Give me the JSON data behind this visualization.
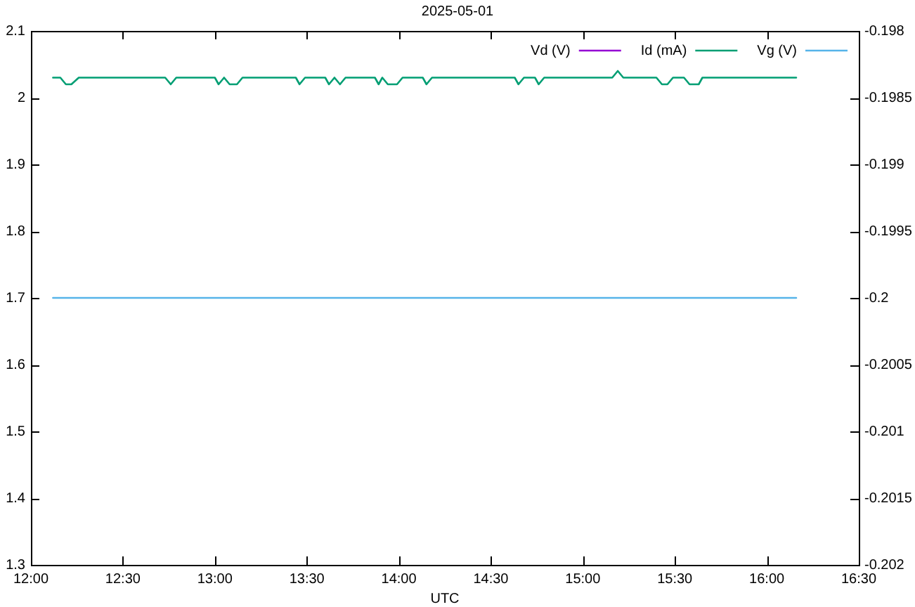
{
  "chart_data": {
    "type": "line",
    "title": "2025-05-01",
    "xlabel": "UTC",
    "xlim": [
      12,
      16.5
    ],
    "xticks": [
      {
        "value": 12,
        "label": "12:00"
      },
      {
        "value": 12.5,
        "label": "12:30"
      },
      {
        "value": 13,
        "label": "13:00"
      },
      {
        "value": 13.5,
        "label": "13:30"
      },
      {
        "value": 14,
        "label": "14:00"
      },
      {
        "value": 14.5,
        "label": "14:30"
      },
      {
        "value": 15,
        "label": "15:00"
      },
      {
        "value": 15.5,
        "label": "15:30"
      },
      {
        "value": 16,
        "label": "16:00"
      },
      {
        "value": 16.5,
        "label": "16:30"
      }
    ],
    "ylim": [
      1.3,
      2.1
    ],
    "yticks": [
      1.3,
      1.4,
      1.5,
      1.6,
      1.7,
      1.8,
      1.9,
      2,
      2.1
    ],
    "y2lim": [
      -0.202,
      -0.198
    ],
    "y2ticks": [
      -0.202,
      -0.2015,
      -0.201,
      -0.2005,
      -0.2,
      -0.1995,
      -0.199,
      -0.1985,
      -0.198
    ],
    "grid": false,
    "legend": "top right",
    "marker": "none",
    "series": [
      {
        "name": "Vd (V)",
        "color": "#9400d3"
      },
      {
        "name": "Id (mA)",
        "color": "#009e73",
        "x": [
          12.12,
          12.16,
          12.19,
          12.22,
          12.26,
          12.73,
          12.76,
          12.79,
          13.0,
          13.02,
          13.05,
          13.08,
          13.12,
          13.15,
          13.44,
          13.46,
          13.49,
          13.6,
          13.62,
          13.65,
          13.68,
          13.71,
          13.87,
          13.89,
          13.91,
          13.94,
          13.99,
          14.02,
          14.13,
          14.15,
          14.18,
          14.63,
          14.65,
          14.68,
          14.74,
          14.76,
          14.79,
          15.16,
          15.19,
          15.22,
          15.4,
          15.43,
          15.46,
          15.49,
          15.55,
          15.58,
          15.63,
          15.65,
          16.16
        ],
        "values": [
          2.03,
          2.03,
          2.02,
          2.02,
          2.03,
          2.03,
          2.02,
          2.03,
          2.03,
          2.02,
          2.03,
          2.02,
          2.02,
          2.03,
          2.03,
          2.02,
          2.03,
          2.03,
          2.02,
          2.03,
          2.02,
          2.03,
          2.03,
          2.02,
          2.03,
          2.02,
          2.02,
          2.03,
          2.03,
          2.02,
          2.03,
          2.03,
          2.02,
          2.03,
          2.03,
          2.02,
          2.03,
          2.03,
          2.04,
          2.03,
          2.03,
          2.02,
          2.02,
          2.03,
          2.03,
          2.02,
          2.02,
          2.03,
          2.03
        ]
      },
      {
        "name": "Vg (V)",
        "color": "#56b4e9",
        "axis": "y2",
        "x": [
          12.12,
          16.16
        ],
        "values": [
          -0.2,
          -0.2
        ]
      }
    ]
  }
}
